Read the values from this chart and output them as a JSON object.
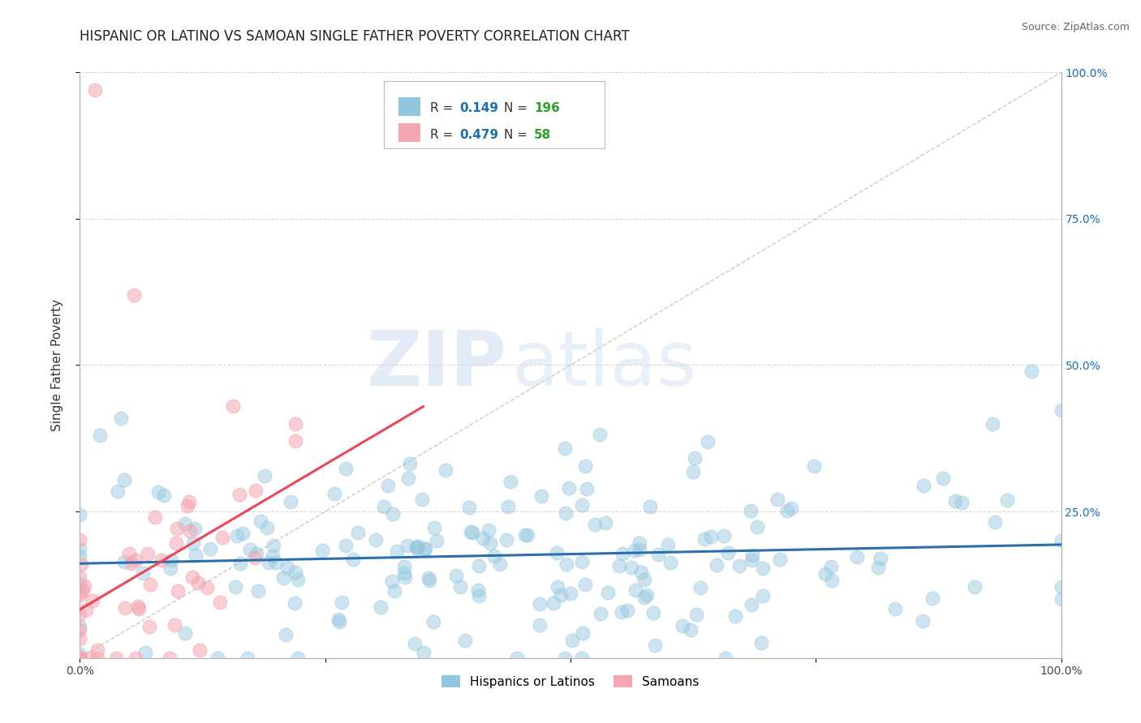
{
  "title": "HISPANIC OR LATINO VS SAMOAN SINGLE FATHER POVERTY CORRELATION CHART",
  "source_text": "Source: ZipAtlas.com",
  "ylabel": "Single Father Poverty",
  "watermark_zip": "ZIP",
  "watermark_atlas": "atlas",
  "xlim": [
    0,
    1
  ],
  "ylim": [
    0,
    1
  ],
  "xtick_labels": [
    "0.0%",
    "",
    "",
    "",
    "100.0%"
  ],
  "xtick_vals": [
    0,
    0.25,
    0.5,
    0.75,
    1.0
  ],
  "right_ytick_labels": [
    "100.0%",
    "75.0%",
    "50.0%",
    "25.0%"
  ],
  "right_ytick_vals": [
    1.0,
    0.75,
    0.5,
    0.25
  ],
  "blue_color": "#92c5de",
  "pink_color": "#f4a7b2",
  "blue_line_color": "#2c6fad",
  "pink_line_color": "#e8485a",
  "R_blue": 0.149,
  "N_blue": 196,
  "R_pink": 0.479,
  "N_pink": 58,
  "legend_R_color": "#1a6faf",
  "legend_N_color": "#2ca02c",
  "background_color": "#ffffff",
  "grid_color": "#c8c8c8",
  "title_fontsize": 12,
  "axis_label_fontsize": 11,
  "tick_fontsize": 10,
  "seed": 42
}
